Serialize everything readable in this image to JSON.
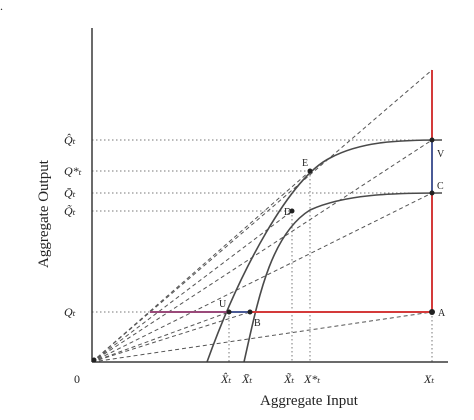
{
  "figure": {
    "corner_mark": "."
  },
  "axes": {
    "x_title": "Aggregate Input",
    "y_title": "Aggregate Output",
    "origin": "0"
  },
  "x_ticks": {
    "x_hat": "X̂ₜ",
    "x_bar": "X̄ₜ",
    "x_tilde": "X̃ₜ",
    "x_star": "X*ₜ",
    "x_t": "Xₜ"
  },
  "y_ticks": {
    "q_hat": "Q̂ₜ",
    "q_star": "Q*ₜ",
    "q_bar": "Q̄ₜ",
    "q_tilde": "Q̃ₜ",
    "q_t": "Qₜ"
  },
  "points": {
    "E": "E",
    "D": "D",
    "U": "U",
    "B": "B",
    "A": "A",
    "C": "C",
    "V": "V"
  },
  "colors": {
    "axis": "#3a3a3a",
    "curve": "#4a4a4a",
    "dashed": "#555555",
    "dotted": "#777777",
    "red": "#d43a3a",
    "blue": "#4a5a96",
    "purple": "#9a4a7a",
    "background": "#ffffff"
  }
}
